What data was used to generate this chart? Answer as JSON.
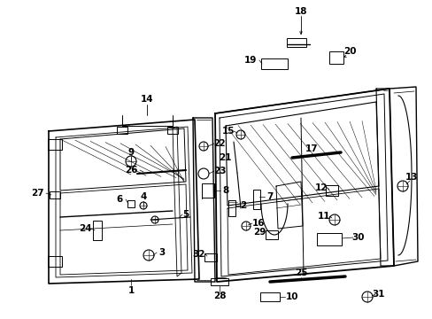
{
  "bg_color": "#ffffff",
  "fig_width": 4.89,
  "fig_height": 3.6,
  "dpi": 100,
  "line_color": "#000000",
  "label_fontsize": 8.5,
  "small_fontsize": 7.5
}
